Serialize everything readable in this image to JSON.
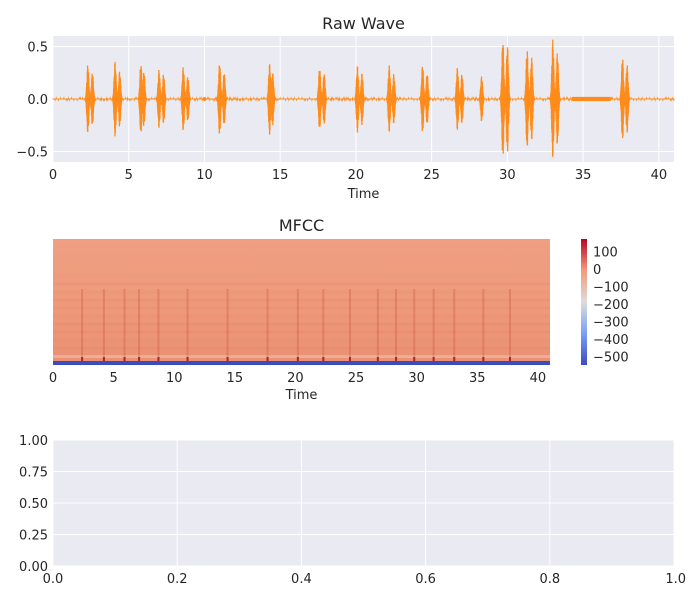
{
  "chart_data": [
    {
      "type": "line",
      "title": "Raw Wave",
      "xlabel": "Time",
      "ylabel": "",
      "xlim": [
        0,
        41
      ],
      "ylim": [
        -0.6,
        0.6
      ],
      "xticks": [
        0,
        5,
        10,
        15,
        20,
        25,
        30,
        35,
        40
      ],
      "yticks": [
        -0.5,
        0.0,
        0.5
      ],
      "xtick_labels": [
        "0",
        "5",
        "10",
        "15",
        "20",
        "25",
        "30",
        "35",
        "40"
      ],
      "ytick_labels": [
        "−0.5",
        "0.0",
        "0.5"
      ],
      "grid": true,
      "line_color": "#ff8c1a",
      "background": "#eaeaf2",
      "bursts": [
        {
          "t": 2.3,
          "amp": 0.33
        },
        {
          "t": 2.6,
          "amp": 0.26
        },
        {
          "t": 4.1,
          "amp": 0.36
        },
        {
          "t": 4.4,
          "amp": 0.27
        },
        {
          "t": 5.8,
          "amp": 0.34
        },
        {
          "t": 6.0,
          "amp": 0.27
        },
        {
          "t": 7.0,
          "amp": 0.28
        },
        {
          "t": 7.3,
          "amp": 0.24
        },
        {
          "t": 8.6,
          "amp": 0.31
        },
        {
          "t": 8.9,
          "amp": 0.22
        },
        {
          "t": 10.0,
          "amp": 0.02
        },
        {
          "t": 11.0,
          "amp": 0.35
        },
        {
          "t": 11.3,
          "amp": 0.26
        },
        {
          "t": 14.3,
          "amp": 0.34
        },
        {
          "t": 14.5,
          "amp": 0.26
        },
        {
          "t": 17.6,
          "amp": 0.3
        },
        {
          "t": 17.9,
          "amp": 0.25
        },
        {
          "t": 20.1,
          "amp": 0.32
        },
        {
          "t": 20.4,
          "amp": 0.25
        },
        {
          "t": 22.2,
          "amp": 0.32
        },
        {
          "t": 22.5,
          "amp": 0.24
        },
        {
          "t": 24.4,
          "amp": 0.33
        },
        {
          "t": 24.7,
          "amp": 0.25
        },
        {
          "t": 26.7,
          "amp": 0.3
        },
        {
          "t": 27.0,
          "amp": 0.24
        },
        {
          "t": 28.3,
          "amp": 0.22
        },
        {
          "t": 29.7,
          "amp": 0.57
        },
        {
          "t": 30.0,
          "amp": 0.52
        },
        {
          "t": 31.3,
          "amp": 0.48
        },
        {
          "t": 31.6,
          "amp": 0.4
        },
        {
          "t": 33.0,
          "amp": 0.57
        },
        {
          "t": 33.3,
          "amp": 0.45
        },
        {
          "t": 37.6,
          "amp": 0.4
        },
        {
          "t": 37.9,
          "amp": 0.33
        }
      ],
      "noise_segments": [
        {
          "t0": 34.3,
          "t1": 36.8,
          "amp": 0.02
        }
      ]
    },
    {
      "type": "heatmap",
      "title": "MFCC",
      "xlabel": "Time",
      "xlim": [
        0,
        41
      ],
      "xticks": [
        0,
        5,
        10,
        15,
        20,
        25,
        30,
        35,
        40
      ],
      "xtick_labels": [
        "0",
        "5",
        "10",
        "15",
        "20",
        "25",
        "30",
        "35",
        "40"
      ],
      "colormap": "coolwarm",
      "colorbar": {
        "vmin": -550,
        "vmax": 170,
        "ticks": [
          100,
          0,
          -100,
          -200,
          -300,
          -400,
          -500
        ],
        "tick_labels": [
          "100",
          "0",
          "−100",
          "−200",
          "−300",
          "−400",
          "−500"
        ]
      },
      "events": [
        2.4,
        4.2,
        5.9,
        7.1,
        8.7,
        11.1,
        14.4,
        17.7,
        20.2,
        22.3,
        24.5,
        26.8,
        28.3,
        29.8,
        31.4,
        33.1,
        35.5,
        37.7
      ]
    },
    {
      "type": "line",
      "title": "",
      "xlabel": "",
      "ylabel": "",
      "xlim": [
        0.0,
        1.0
      ],
      "ylim": [
        0.0,
        1.0
      ],
      "xticks": [
        0.0,
        0.2,
        0.4,
        0.6,
        0.8,
        1.0
      ],
      "yticks": [
        0.0,
        0.25,
        0.5,
        0.75,
        1.0
      ],
      "xtick_labels": [
        "0.0",
        "0.2",
        "0.4",
        "0.6",
        "0.8",
        "1.0"
      ],
      "ytick_labels": [
        "0.00",
        "0.25",
        "0.50",
        "0.75",
        "1.00"
      ],
      "grid": true,
      "series": []
    }
  ]
}
